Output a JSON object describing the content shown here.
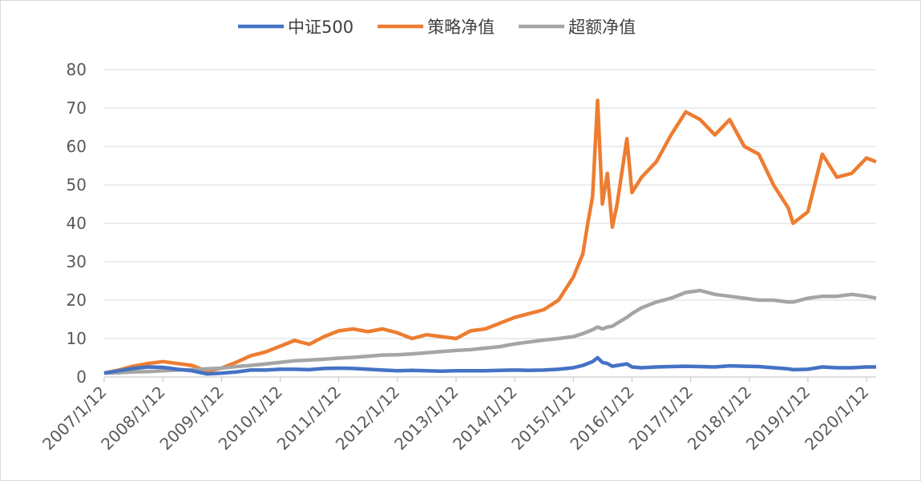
{
  "chart_data": {
    "type": "line",
    "x": [
      "2007/1/12",
      "2007/4/12",
      "2007/7/12",
      "2007/10/12",
      "2008/1/12",
      "2008/4/12",
      "2008/7/12",
      "2008/10/12",
      "2009/1/12",
      "2009/4/12",
      "2009/7/12",
      "2009/10/12",
      "2010/1/12",
      "2010/4/12",
      "2010/7/12",
      "2010/10/12",
      "2011/1/12",
      "2011/4/12",
      "2011/7/12",
      "2011/10/12",
      "2012/1/12",
      "2012/4/12",
      "2012/7/12",
      "2012/10/12",
      "2013/1/12",
      "2013/4/12",
      "2013/7/12",
      "2013/10/12",
      "2014/1/12",
      "2014/4/12",
      "2014/7/12",
      "2014/10/12",
      "2015/1/12",
      "2015/3/12",
      "2015/4/12",
      "2015/5/12",
      "2015/6/12",
      "2015/7/12",
      "2015/8/12",
      "2015/9/12",
      "2015/10/12",
      "2015/12/12",
      "2016/1/12",
      "2016/3/12",
      "2016/6/12",
      "2016/9/12",
      "2016/12/12",
      "2017/3/12",
      "2017/6/12",
      "2017/9/12",
      "2017/12/12",
      "2018/3/12",
      "2018/6/12",
      "2018/9/12",
      "2018/10/12",
      "2019/1/12",
      "2019/4/12",
      "2019/7/12",
      "2019/10/12",
      "2020/1/12",
      "2020/3/12"
    ],
    "series": [
      {
        "name": "中证500",
        "color": "#4472c4",
        "values": [
          1,
          1.6,
          2.2,
          2.6,
          2.5,
          2.0,
          1.6,
          0.8,
          1.0,
          1.3,
          1.8,
          1.8,
          2.0,
          2.0,
          1.9,
          2.2,
          2.3,
          2.2,
          2.0,
          1.8,
          1.6,
          1.7,
          1.6,
          1.5,
          1.6,
          1.6,
          1.6,
          1.7,
          1.8,
          1.7,
          1.8,
          2.0,
          2.4,
          3.0,
          3.5,
          4.0,
          5.0,
          3.8,
          3.5,
          2.8,
          3.0,
          3.4,
          2.6,
          2.4,
          2.6,
          2.7,
          2.8,
          2.7,
          2.6,
          2.9,
          2.8,
          2.7,
          2.4,
          2.1,
          1.9,
          2.0,
          2.6,
          2.4,
          2.4,
          2.6,
          2.6
        ]
      },
      {
        "name": "策略净值",
        "color": "#ed7d31",
        "values": [
          1,
          1.8,
          2.8,
          3.5,
          4.0,
          3.5,
          3.0,
          1.5,
          2.3,
          3.8,
          5.5,
          6.5,
          8.0,
          9.5,
          8.5,
          10.5,
          12.0,
          12.5,
          11.8,
          12.5,
          11.5,
          10.0,
          11.0,
          10.5,
          10.0,
          12.0,
          12.5,
          14.0,
          15.5,
          16.5,
          17.5,
          20.0,
          26.0,
          32.0,
          40.0,
          47.0,
          72.0,
          45.0,
          53.0,
          39.0,
          45.0,
          62.0,
          48.0,
          52.0,
          56.0,
          63.0,
          69.0,
          67.0,
          63.0,
          67.0,
          60.0,
          58.0,
          50.0,
          44.0,
          40.0,
          43.0,
          58.0,
          52.0,
          53.0,
          57.0,
          56.0
        ]
      },
      {
        "name": "超额净值",
        "color": "#a5a5a5",
        "values": [
          1,
          1.1,
          1.3,
          1.4,
          1.6,
          1.8,
          1.9,
          2.1,
          2.3,
          2.7,
          3.0,
          3.4,
          3.8,
          4.2,
          4.4,
          4.6,
          4.9,
          5.1,
          5.4,
          5.7,
          5.8,
          6.0,
          6.3,
          6.6,
          6.9,
          7.1,
          7.5,
          7.9,
          8.6,
          9.1,
          9.6,
          10.0,
          10.5,
          11.3,
          11.8,
          12.3,
          13.0,
          12.5,
          13.0,
          13.2,
          14.0,
          15.5,
          16.5,
          18.0,
          19.5,
          20.5,
          22.0,
          22.5,
          21.5,
          21.0,
          20.5,
          20.0,
          20.0,
          19.5,
          19.5,
          20.5,
          21.0,
          21.0,
          21.5,
          21.0,
          20.5
        ]
      }
    ],
    "xlim": [
      "2007/1/12",
      "2020/3/12"
    ],
    "xticks": [
      "2007/1/12",
      "2008/1/12",
      "2009/1/12",
      "2010/1/12",
      "2011/1/12",
      "2012/1/12",
      "2013/1/12",
      "2014/1/12",
      "2015/1/12",
      "2016/1/12",
      "2017/1/12",
      "2018/1/12",
      "2019/1/12",
      "2020/1/12"
    ],
    "ylim": [
      0,
      80
    ],
    "yticks": [
      0,
      10,
      20,
      30,
      40,
      50,
      60,
      70,
      80
    ],
    "grid": true,
    "legend": "top"
  }
}
